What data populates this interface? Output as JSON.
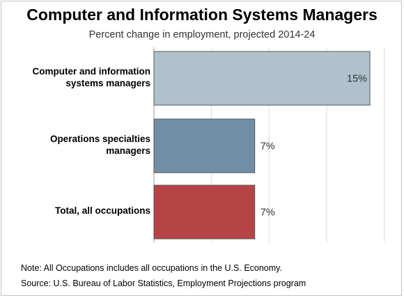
{
  "header": {
    "title": "Computer and Information Systems Managers",
    "subtitle": "Percent change in employment, projected 2014-24"
  },
  "footer": {
    "note": "Note: All Occupations includes all occupations in the U.S. Economy.",
    "source": "Source: U.S. Bureau of Labor Statistics, Employment Projections program"
  },
  "colors": {
    "bar_1": "#aec1cc",
    "bar_2": "#718ea5",
    "bar_3": "#b64446",
    "grid": "#dcdcdc",
    "axis": "#999999"
  },
  "chart_data": {
    "type": "bar",
    "orientation": "horizontal",
    "title": "Computer and Information Systems Managers",
    "subtitle": "Percent change in employment, projected 2014-24",
    "categories": [
      [
        "Computer and information",
        "systems managers"
      ],
      [
        "Operations specialties",
        "managers"
      ],
      [
        "Total, all occupations"
      ]
    ],
    "values": [
      15,
      7,
      7
    ],
    "data_labels": [
      "15%",
      "7%",
      "7%"
    ],
    "xlim": [
      0,
      16
    ],
    "grid": true
  }
}
